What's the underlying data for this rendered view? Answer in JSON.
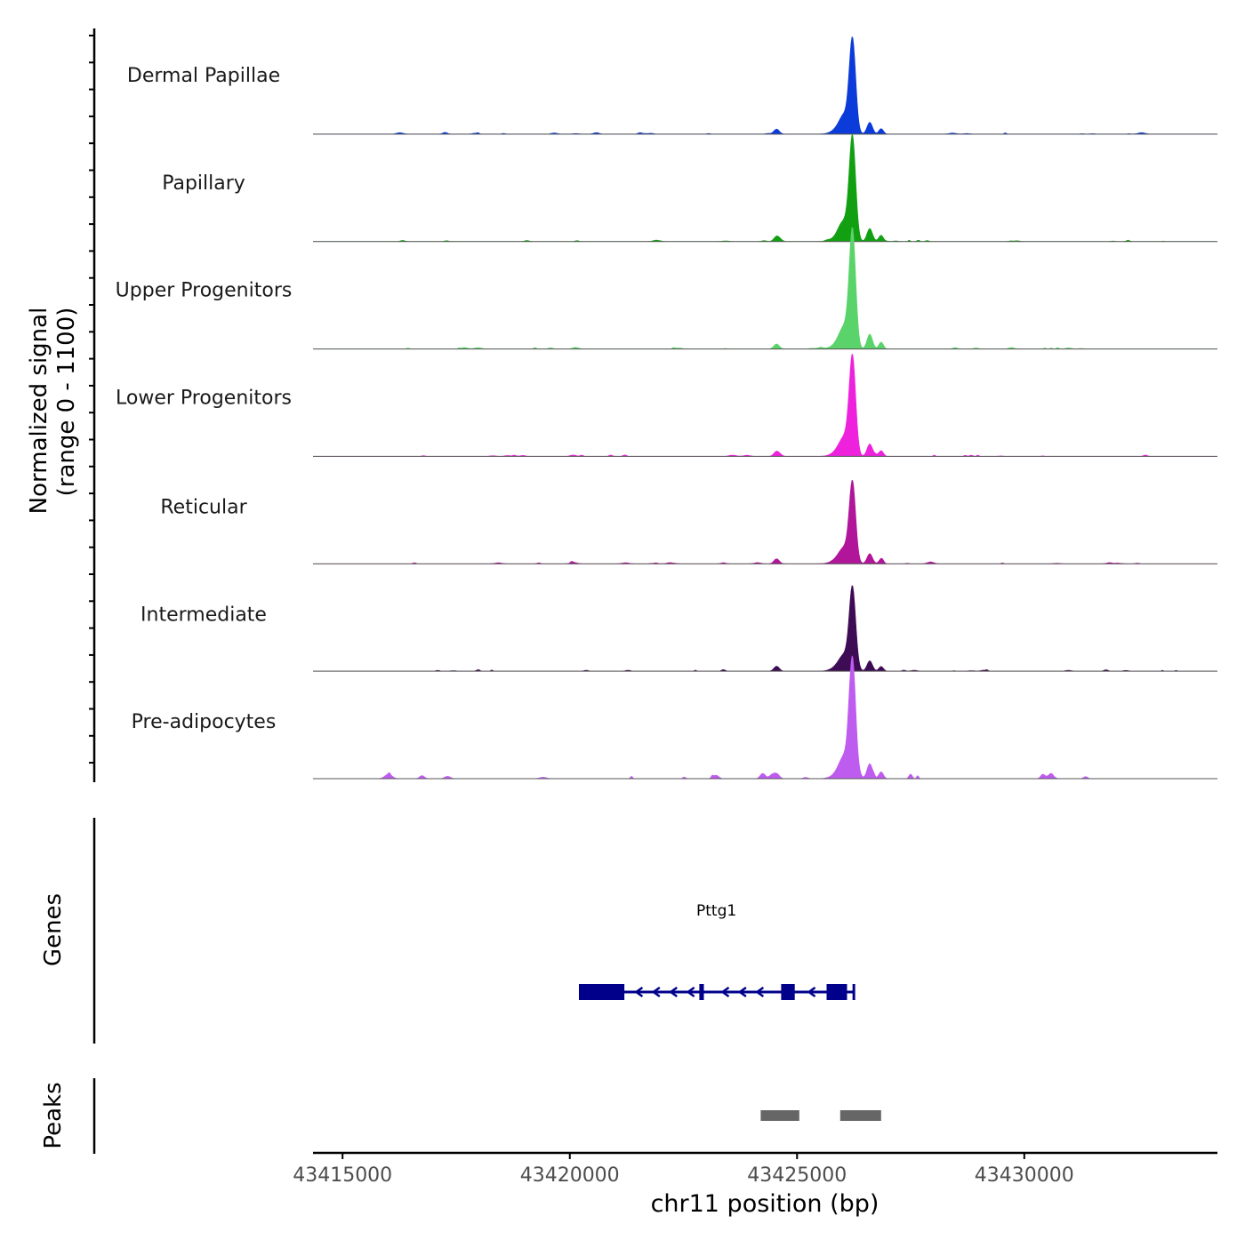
{
  "chart_data": {
    "type": "area",
    "chromosome": "chr11",
    "xlabel": "chr11 position (bp)",
    "ylabel_line1": "Normalized signal",
    "ylabel_line2": "(range 0 - 1100)",
    "xlim": [
      43414350,
      43434250
    ],
    "ylim": [
      0,
      1100
    ],
    "xticks": [
      43415000,
      43420000,
      43425000,
      43430000
    ],
    "xtick_labels": [
      "43415000",
      "43420000",
      "43425000",
      "43430000"
    ],
    "coverage_tracks": [
      {
        "name": "Dermal Papillae",
        "color": "#0b3bd9",
        "peak_height": 1000
      },
      {
        "name": "Papillary",
        "color": "#12a012",
        "peak_height": 1100
      },
      {
        "name": "Upper Progenitors",
        "color": "#5ad46a",
        "peak_height": 1250
      },
      {
        "name": "Lower Progenitors",
        "color": "#ee22dd",
        "peak_height": 1050
      },
      {
        "name": "Reticular",
        "color": "#b0159a",
        "peak_height": 860
      },
      {
        "name": "Intermediate",
        "color": "#3e0b55",
        "peak_height": 880
      },
      {
        "name": "Pre-adipocytes",
        "color": "#bf5cf0",
        "peak_height": 1260
      }
    ],
    "genes_track_label": "Genes",
    "gene": {
      "name": "Pttg1",
      "color": "#00008b",
      "strand": "-",
      "start": 43420200,
      "end": 43426250,
      "exons": [
        [
          43420200,
          43421200
        ],
        [
          43422850,
          43422950
        ],
        [
          43424650,
          43424950
        ],
        [
          43425650,
          43426100
        ]
      ]
    },
    "peaks_track_label": "Peaks",
    "peaks": [
      [
        43424200,
        43425050
      ],
      [
        43425950,
        43426850
      ]
    ],
    "peak_color": "#666666"
  }
}
